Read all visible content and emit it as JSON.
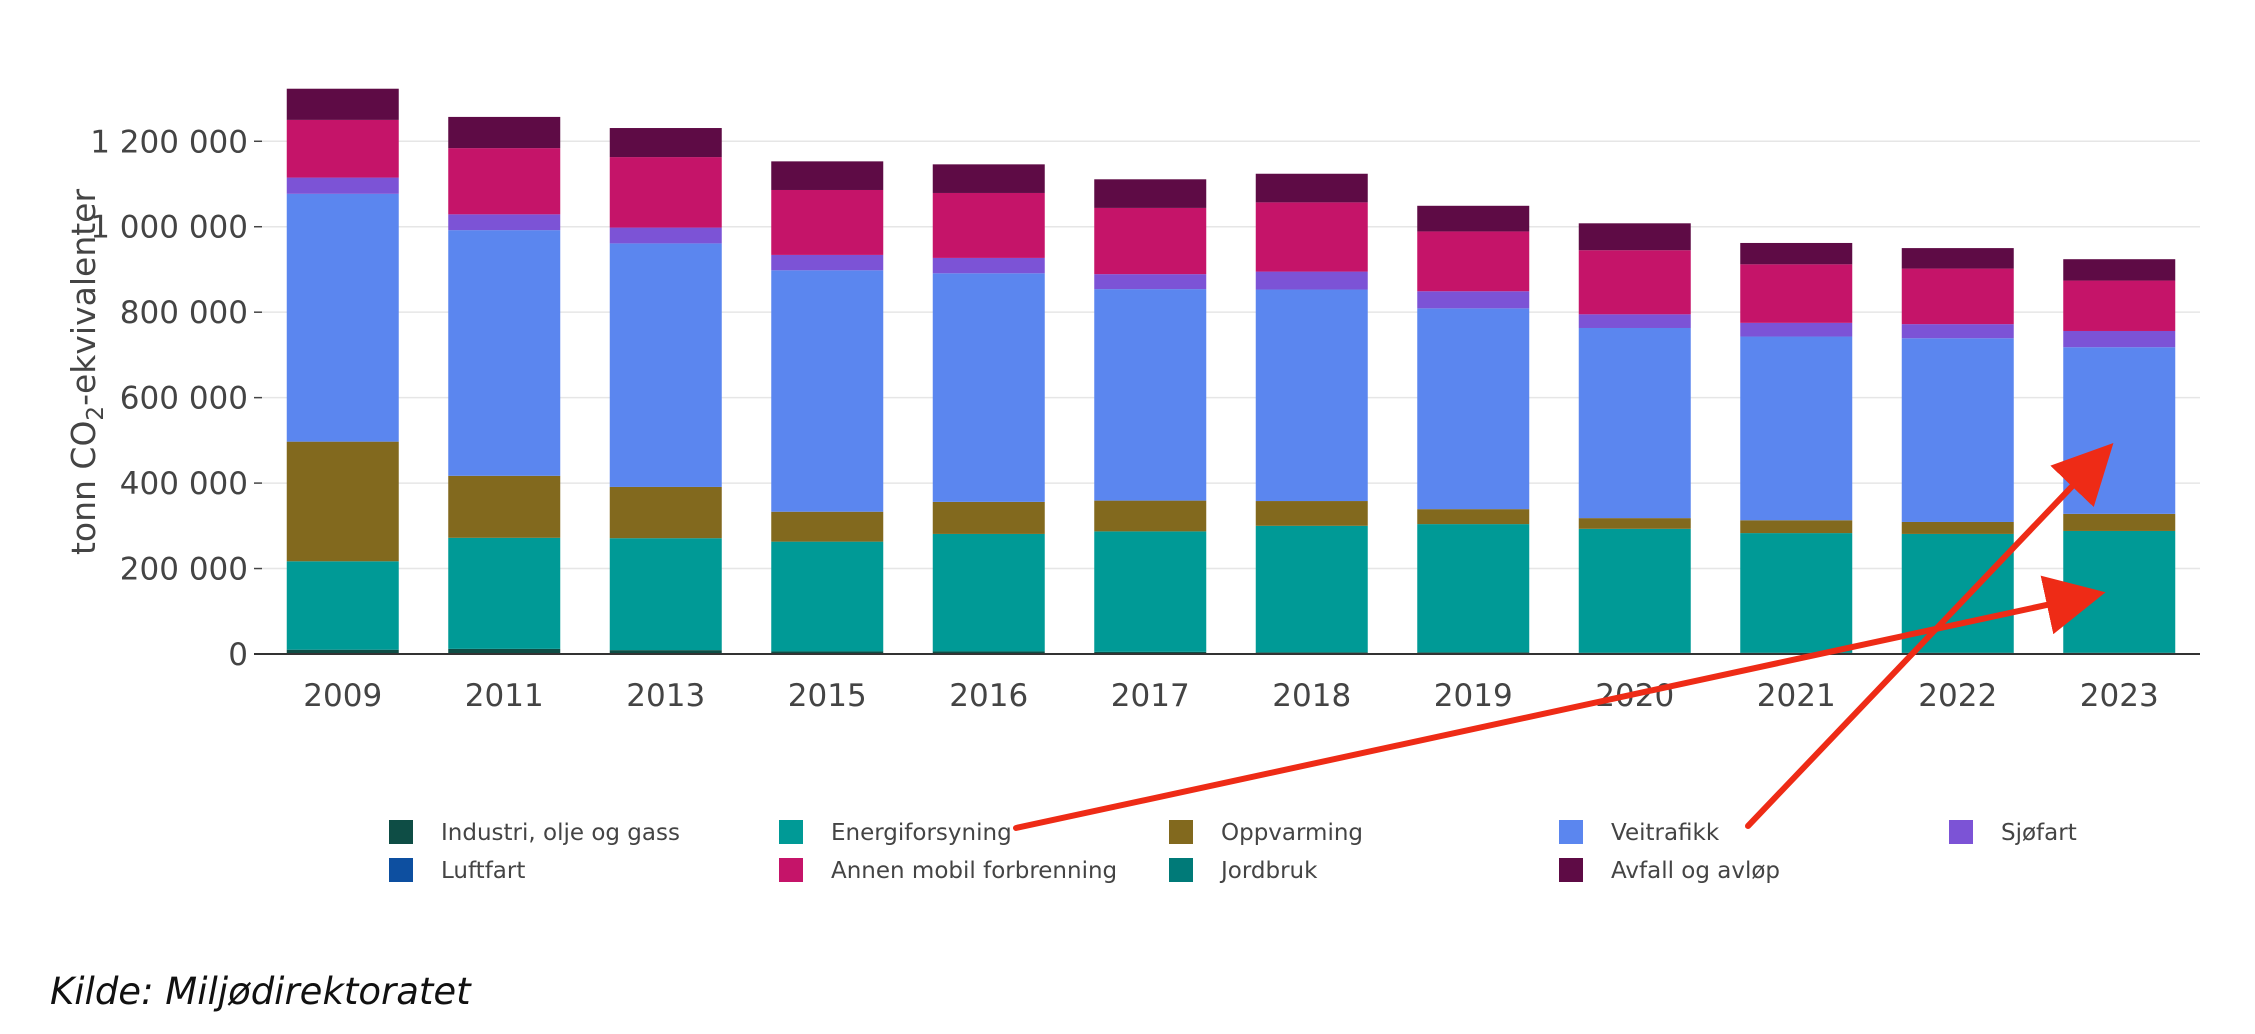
{
  "chart_data": {
    "type": "bar",
    "stacked": true,
    "ylabel_parts": [
      "tonn CO",
      "2",
      "-ekvivalenter"
    ],
    "ylim": [
      0,
      1320000
    ],
    "yticks": [
      0,
      200000,
      400000,
      600000,
      800000,
      1000000,
      1200000
    ],
    "ytick_labels": [
      "0",
      "200 000",
      "400 000",
      "600 000",
      "800 000",
      "1 000 000",
      "1 200 000"
    ],
    "grid": true,
    "legend_position": "bottom",
    "categories": [
      "2009",
      "2011",
      "2013",
      "2015",
      "2016",
      "2017",
      "2018",
      "2019",
      "2020",
      "2021",
      "2022",
      "2023"
    ],
    "series": [
      {
        "name": "Industri, olje og gass",
        "color": "#0e4d45",
        "values": [
          10000,
          12000,
          9000,
          6000,
          6000,
          5000,
          4000,
          4000,
          3000,
          3000,
          3000,
          3000
        ]
      },
      {
        "name": "Luftfart",
        "color": "#0d4fa0",
        "values": [
          0,
          0,
          0,
          0,
          0,
          0,
          0,
          0,
          0,
          0,
          0,
          0
        ]
      },
      {
        "name": "Energiforsyning",
        "color": "#009a96",
        "values": [
          207000,
          260000,
          262000,
          257000,
          275000,
          282000,
          296000,
          300000,
          290000,
          280000,
          278000,
          285000
        ]
      },
      {
        "name": "Annen mobil forbrenning",
        "color": "#c51469",
        "values": [
          135000,
          155000,
          165000,
          152000,
          152000,
          155000,
          162000,
          140000,
          150000,
          137000,
          130000,
          118000
        ]
      },
      {
        "name": "Oppvarming",
        "color": "#82691e",
        "values": [
          280000,
          145000,
          120000,
          70000,
          75000,
          72000,
          58000,
          35000,
          25000,
          30000,
          28000,
          40000
        ]
      },
      {
        "name": "Jordbruk",
        "color": "#007a78",
        "values": [
          0,
          0,
          0,
          0,
          0,
          0,
          0,
          0,
          0,
          0,
          0,
          0
        ]
      },
      {
        "name": "Veitrafikk",
        "color": "#5b86ef",
        "values": [
          580000,
          575000,
          570000,
          565000,
          535000,
          495000,
          495000,
          470000,
          445000,
          430000,
          430000,
          390000
        ]
      },
      {
        "name": "Avfall og avløp",
        "color": "#5e0b45",
        "values": [
          73000,
          73000,
          68000,
          67000,
          67000,
          67000,
          67000,
          60000,
          63000,
          50000,
          48000,
          50000
        ]
      },
      {
        "name": "Sjøfart",
        "color": "#7c53d6",
        "values": [
          38000,
          37000,
          37000,
          36000,
          36000,
          35000,
          42000,
          40000,
          32000,
          32000,
          33000,
          38000
        ]
      }
    ],
    "stack_order": [
      "Industri, olje og gass",
      "Energiforsyning",
      "Oppvarming",
      "Veitrafikk",
      "Sjøfart",
      "Annen mobil forbrenning",
      "Avfall og avløp"
    ],
    "legend_rows": [
      [
        "Industri, olje og gass",
        "Energiforsyning",
        "Oppvarming",
        "Veitrafikk",
        "Sjøfart"
      ],
      [
        "Luftfart",
        "Annen mobil forbrenning",
        "Jordbruk",
        "Avfall og avløp"
      ]
    ]
  },
  "annotations": {
    "arrow_color": "#ee2b16"
  },
  "source": "Kilde: Miljødirektoratet"
}
